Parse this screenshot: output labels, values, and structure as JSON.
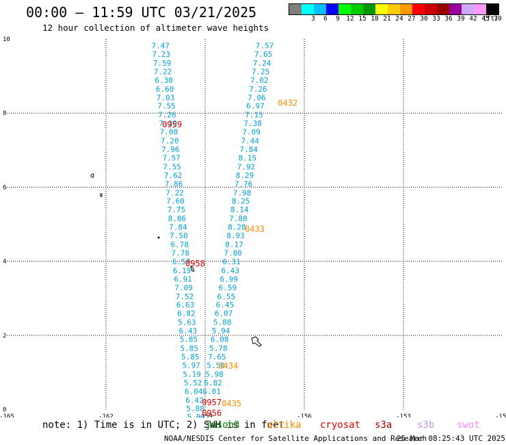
{
  "header": {
    "title": "00:00 – 11:59 UTC 03/21/2025",
    "subtitle": "12 hour collection of altimeter wave heights"
  },
  "legend": {
    "swatches": [
      {
        "color": "#7f7f7f",
        "label": ""
      },
      {
        "color": "#00ffff",
        "label": "3"
      },
      {
        "color": "#00bfff",
        "label": "6"
      },
      {
        "color": "#0000ff",
        "label": "9"
      },
      {
        "color": "#00ff00",
        "label": "12"
      },
      {
        "color": "#00cc00",
        "label": "15"
      },
      {
        "color": "#009900",
        "label": "18"
      },
      {
        "color": "#ffff00",
        "label": "21"
      },
      {
        "color": "#ffcc00",
        "label": "24"
      },
      {
        "color": "#ff9900",
        "label": "27"
      },
      {
        "color": "#ff0000",
        "label": "30"
      },
      {
        "color": "#cc0000",
        "label": "33"
      },
      {
        "color": "#990000",
        "label": "36"
      },
      {
        "color": "#990099",
        "label": "39"
      },
      {
        "color": "#ccaaff",
        "label": "42"
      },
      {
        "color": "#ff99ff",
        "label": "45"
      },
      {
        "color": "#000000",
        "label": "70"
      }
    ],
    "unit": "(ft)"
  },
  "map": {
    "lon_range": [
      -165,
      -150
    ],
    "lat_range": [
      0,
      10
    ],
    "x_ticks": [
      {
        "value": -165,
        "label": "-165"
      },
      {
        "value": -162,
        "label": "-162"
      },
      {
        "value": -159,
        "label": "-159"
      },
      {
        "value": -156,
        "label": "-156"
      },
      {
        "value": -153,
        "label": "-153"
      },
      {
        "value": -150,
        "label": "-150"
      }
    ],
    "y_ticks": [
      {
        "value": 0,
        "label": "0"
      },
      {
        "value": 2,
        "label": "2"
      },
      {
        "value": 4,
        "label": "4"
      },
      {
        "value": 6,
        "label": "6"
      },
      {
        "value": 8,
        "label": "8"
      },
      {
        "value": 10,
        "label": "10"
      }
    ],
    "grid": true,
    "track_a": {
      "color": "#00a0d8",
      "points": [
        {
          "lon": -160.35,
          "lat": 9.75,
          "v": "7.47"
        },
        {
          "lon": -160.33,
          "lat": 9.52,
          "v": "7.23"
        },
        {
          "lon": -160.3,
          "lat": 9.28,
          "v": "7.59"
        },
        {
          "lon": -160.28,
          "lat": 9.05,
          "v": "7.22"
        },
        {
          "lon": -160.25,
          "lat": 8.82,
          "v": "6.30"
        },
        {
          "lon": -160.22,
          "lat": 8.58,
          "v": "6.60"
        },
        {
          "lon": -160.2,
          "lat": 8.35,
          "v": "7.03"
        },
        {
          "lon": -160.17,
          "lat": 8.12,
          "v": "7.55"
        },
        {
          "lon": -160.15,
          "lat": 7.88,
          "v": "7.26"
        },
        {
          "lon": -160.12,
          "lat": 7.65,
          "v": "7.30"
        },
        {
          "lon": -160.1,
          "lat": 7.42,
          "v": "7.08"
        },
        {
          "lon": -160.07,
          "lat": 7.18,
          "v": "7.20"
        },
        {
          "lon": -160.05,
          "lat": 6.95,
          "v": "7.96"
        },
        {
          "lon": -160.02,
          "lat": 6.72,
          "v": "7.57"
        },
        {
          "lon": -160.0,
          "lat": 6.48,
          "v": "7.55"
        },
        {
          "lon": -159.97,
          "lat": 6.25,
          "v": "7.62"
        },
        {
          "lon": -159.95,
          "lat": 6.02,
          "v": "7.86"
        },
        {
          "lon": -159.92,
          "lat": 5.78,
          "v": "7.22"
        },
        {
          "lon": -159.9,
          "lat": 5.55,
          "v": "7.60"
        },
        {
          "lon": -159.87,
          "lat": 5.32,
          "v": "7.75"
        },
        {
          "lon": -159.85,
          "lat": 5.08,
          "v": "8.06"
        },
        {
          "lon": -159.82,
          "lat": 4.85,
          "v": "7.84"
        },
        {
          "lon": -159.8,
          "lat": 4.62,
          "v": "7.50"
        },
        {
          "lon": -159.77,
          "lat": 4.38,
          "v": "6.78"
        },
        {
          "lon": -159.75,
          "lat": 4.15,
          "v": "7.78"
        },
        {
          "lon": -159.72,
          "lat": 3.92,
          "v": "6.57"
        },
        {
          "lon": -159.7,
          "lat": 3.68,
          "v": "6.19"
        },
        {
          "lon": -159.67,
          "lat": 3.45,
          "v": "6.91"
        },
        {
          "lon": -159.65,
          "lat": 3.22,
          "v": "7.09"
        },
        {
          "lon": -159.62,
          "lat": 2.98,
          "v": "7.52"
        },
        {
          "lon": -159.6,
          "lat": 2.75,
          "v": "6.63"
        },
        {
          "lon": -159.57,
          "lat": 2.52,
          "v": "6.82"
        },
        {
          "lon": -159.55,
          "lat": 2.28,
          "v": "5.63"
        },
        {
          "lon": -159.52,
          "lat": 2.05,
          "v": "6.43"
        },
        {
          "lon": -159.5,
          "lat": 1.82,
          "v": "5.85"
        },
        {
          "lon": -159.48,
          "lat": 1.58,
          "v": "5.85"
        },
        {
          "lon": -159.45,
          "lat": 1.35,
          "v": "5.85"
        },
        {
          "lon": -159.42,
          "lat": 1.12,
          "v": "5.97"
        },
        {
          "lon": -159.4,
          "lat": 0.88,
          "v": "5.19"
        },
        {
          "lon": -159.37,
          "lat": 0.65,
          "v": "5.52"
        },
        {
          "lon": -159.35,
          "lat": 0.42,
          "v": "6.04"
        },
        {
          "lon": -159.32,
          "lat": 0.18,
          "v": "6.42"
        },
        {
          "lon": -159.3,
          "lat": -0.05,
          "v": "5.88"
        },
        {
          "lon": -159.27,
          "lat": -0.28,
          "v": "5.06"
        }
      ]
    },
    "track_b": {
      "color": "#00a0d8",
      "points": [
        {
          "lon": -157.2,
          "lat": 9.75,
          "v": "7.57"
        },
        {
          "lon": -157.24,
          "lat": 9.52,
          "v": "7.65"
        },
        {
          "lon": -157.28,
          "lat": 9.28,
          "v": "7.24"
        },
        {
          "lon": -157.32,
          "lat": 9.05,
          "v": "7.25"
        },
        {
          "lon": -157.36,
          "lat": 8.82,
          "v": "7.02"
        },
        {
          "lon": -157.4,
          "lat": 8.58,
          "v": "7.26"
        },
        {
          "lon": -157.44,
          "lat": 8.35,
          "v": "7.06"
        },
        {
          "lon": -157.48,
          "lat": 8.12,
          "v": "6.97"
        },
        {
          "lon": -157.52,
          "lat": 7.88,
          "v": "7.15"
        },
        {
          "lon": -157.56,
          "lat": 7.65,
          "v": "7.38"
        },
        {
          "lon": -157.6,
          "lat": 7.42,
          "v": "7.09"
        },
        {
          "lon": -157.64,
          "lat": 7.18,
          "v": "7.44"
        },
        {
          "lon": -157.68,
          "lat": 6.95,
          "v": "7.84"
        },
        {
          "lon": -157.72,
          "lat": 6.72,
          "v": "8.15"
        },
        {
          "lon": -157.76,
          "lat": 6.48,
          "v": "7.92"
        },
        {
          "lon": -157.8,
          "lat": 6.25,
          "v": "8.29"
        },
        {
          "lon": -157.84,
          "lat": 6.02,
          "v": "7.76"
        },
        {
          "lon": -157.88,
          "lat": 5.78,
          "v": "7.98"
        },
        {
          "lon": -157.92,
          "lat": 5.55,
          "v": "8.25"
        },
        {
          "lon": -157.96,
          "lat": 5.32,
          "v": "8.14"
        },
        {
          "lon": -158.0,
          "lat": 5.08,
          "v": "7.80"
        },
        {
          "lon": -158.04,
          "lat": 4.85,
          "v": "8.28"
        },
        {
          "lon": -158.08,
          "lat": 4.62,
          "v": "8.93"
        },
        {
          "lon": -158.12,
          "lat": 4.38,
          "v": "8.17"
        },
        {
          "lon": -158.16,
          "lat": 4.15,
          "v": "7.80"
        },
        {
          "lon": -158.2,
          "lat": 3.92,
          "v": "6.31"
        },
        {
          "lon": -158.24,
          "lat": 3.68,
          "v": "6.43"
        },
        {
          "lon": -158.28,
          "lat": 3.45,
          "v": "6.99"
        },
        {
          "lon": -158.32,
          "lat": 3.22,
          "v": "6.59"
        },
        {
          "lon": -158.36,
          "lat": 2.98,
          "v": "6.55"
        },
        {
          "lon": -158.4,
          "lat": 2.75,
          "v": "6.45"
        },
        {
          "lon": -158.44,
          "lat": 2.52,
          "v": "6.07"
        },
        {
          "lon": -158.48,
          "lat": 2.28,
          "v": "5.88"
        },
        {
          "lon": -158.52,
          "lat": 2.05,
          "v": "5.94"
        },
        {
          "lon": -158.56,
          "lat": 1.82,
          "v": "6.08"
        },
        {
          "lon": -158.6,
          "lat": 1.58,
          "v": "5.78"
        },
        {
          "lon": -158.64,
          "lat": 1.35,
          "v": "7.65"
        },
        {
          "lon": -158.68,
          "lat": 1.12,
          "v": "5.50"
        },
        {
          "lon": -158.72,
          "lat": 0.88,
          "v": "5.98"
        },
        {
          "lon": -158.76,
          "lat": 0.65,
          "v": "6.82"
        },
        {
          "lon": -158.8,
          "lat": 0.42,
          "v": "6.01"
        }
      ]
    },
    "time_labels": [
      {
        "text": "0959",
        "color": "#e00000",
        "lon": -160.0,
        "lat": 7.62
      },
      {
        "text": "0958",
        "color": "#e00000",
        "lon": -159.3,
        "lat": 3.86
      },
      {
        "text": "0957",
        "color": "#e00000",
        "lon": -158.8,
        "lat": 0.11
      },
      {
        "text": "0956",
        "color": "#e00000",
        "lon": -158.8,
        "lat": -0.18
      },
      {
        "text": "0432",
        "color": "#ff8c00",
        "lon": -156.5,
        "lat": 8.2
      },
      {
        "text": "0433",
        "color": "#ff8c00",
        "lon": -157.5,
        "lat": 4.8
      },
      {
        "text": "0434",
        "color": "#ff8c00",
        "lon": -158.3,
        "lat": 1.1
      },
      {
        "text": "0435",
        "color": "#ff8c00",
        "lon": -158.2,
        "lat": 0.08
      }
    ]
  },
  "note": "note: 1) Time is in UTC; 2) SWH is in feet",
  "satellites": [
    {
      "name": "jason3",
      "color": "#008800"
    },
    {
      "name": "altika",
      "color": "#ff8c00"
    },
    {
      "name": "cryosat",
      "color": "#e00000"
    },
    {
      "name": "s3a",
      "color": "#aa0000"
    },
    {
      "name": "s3b",
      "color": "#bb99ee"
    },
    {
      "name": "swot",
      "color": "#ff88ff"
    }
  ],
  "footer": {
    "credit": "NOAA/NESDIS Center for Satellite Applications and Research",
    "timestamp": "25 Mar 08:25:43 UTC 2025"
  }
}
